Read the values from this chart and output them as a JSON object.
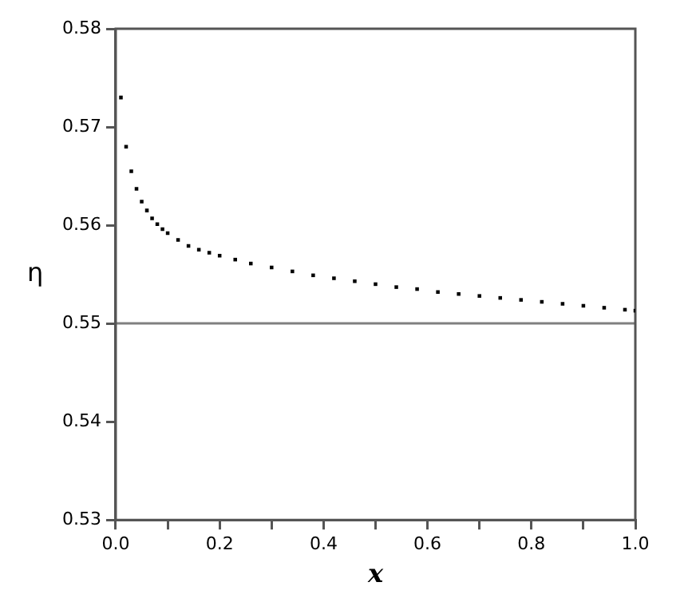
{
  "chart_data": {
    "type": "scatter",
    "xlabel": "x",
    "ylabel": "η",
    "marker": "square",
    "grid": false,
    "legend": false,
    "series": [
      {
        "color": "#000000",
        "x": [
          0.01,
          0.02,
          0.03,
          0.04,
          0.05,
          0.06,
          0.07,
          0.08,
          0.09,
          0.1,
          0.12,
          0.14,
          0.16,
          0.18,
          0.2,
          0.23,
          0.26,
          0.3,
          0.34,
          0.38,
          0.42,
          0.46,
          0.5,
          0.54,
          0.58,
          0.62,
          0.66,
          0.7,
          0.74,
          0.78,
          0.82,
          0.86,
          0.9,
          0.94,
          0.98,
          1.0
        ],
        "values": [
          0.573,
          0.568,
          0.5655,
          0.5637,
          0.5624,
          0.5615,
          0.5607,
          0.5601,
          0.5596,
          0.5592,
          0.5585,
          0.5579,
          0.5575,
          0.5572,
          0.5569,
          0.5565,
          0.5561,
          0.5557,
          0.5553,
          0.5549,
          0.5546,
          0.5543,
          0.554,
          0.5537,
          0.5535,
          0.5532,
          0.553,
          0.5528,
          0.5526,
          0.5524,
          0.5522,
          0.552,
          0.5518,
          0.5516,
          0.5514,
          0.5513
        ]
      }
    ],
    "ref_lines": [
      {
        "axis": "y",
        "value": 0.55,
        "color": "#808080"
      }
    ],
    "xlim": [
      0,
      1
    ],
    "xticks": [
      {
        "value": 0,
        "label": "0.0"
      },
      {
        "value": 0.1,
        "label": null
      },
      {
        "value": 0.2,
        "label": "0.2"
      },
      {
        "value": 0.3,
        "label": null
      },
      {
        "value": 0.4,
        "label": "0.4"
      },
      {
        "value": 0.5,
        "label": null
      },
      {
        "value": 0.6,
        "label": "0.6"
      },
      {
        "value": 0.7,
        "label": null
      },
      {
        "value": 0.8,
        "label": "0.8"
      },
      {
        "value": 0.9,
        "label": null
      },
      {
        "value": 1,
        "label": "1.0"
      }
    ],
    "ylim": [
      0.53,
      0.58
    ],
    "yticks": [
      0.53,
      0.54,
      0.55,
      0.56,
      0.57,
      0.58
    ]
  }
}
